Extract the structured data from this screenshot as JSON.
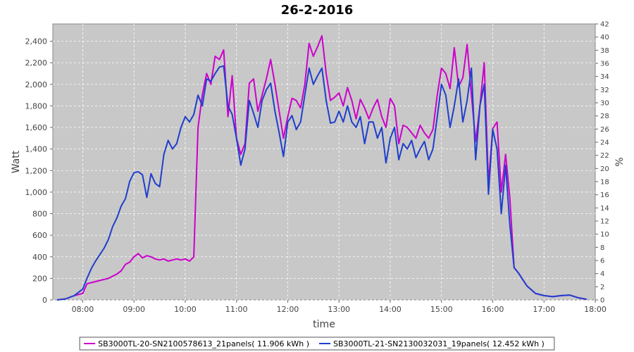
{
  "chart_data": {
    "type": "line",
    "title": "26-2-2016",
    "xlabel": "time",
    "ylabel": "Watt",
    "y2label": "%",
    "xlim": [
      "07:25",
      "18:00"
    ],
    "ylim": [
      0,
      2560
    ],
    "y2lim": [
      0,
      42
    ],
    "x_ticks": [
      "08:00",
      "09:00",
      "10:00",
      "11:00",
      "12:00",
      "13:00",
      "14:00",
      "15:00",
      "16:00",
      "17:00",
      "18:00"
    ],
    "y_ticks": [
      "0",
      "200",
      "400",
      "600",
      "800",
      "1,000",
      "1,200",
      "1,400",
      "1,600",
      "1,800",
      "2,000",
      "2,200",
      "2,400"
    ],
    "y2_ticks": [
      "0",
      "2",
      "4",
      "6",
      "8",
      "10",
      "12",
      "14",
      "16",
      "18",
      "20",
      "22",
      "24",
      "26",
      "28",
      "30",
      "32",
      "34",
      "36",
      "38",
      "40",
      "42"
    ],
    "grid": true,
    "background": "#c8c8c8",
    "legend_position": "bottom",
    "series": [
      {
        "name": "SB3000TL-20-SN2100578613_21panels( 11.906 kWh )",
        "color": "#cc00cc",
        "points": [
          [
            "07:30",
            0
          ],
          [
            "07:40",
            10
          ],
          [
            "07:50",
            40
          ],
          [
            "08:00",
            60
          ],
          [
            "08:05",
            150
          ],
          [
            "08:10",
            160
          ],
          [
            "08:20",
            180
          ],
          [
            "08:30",
            200
          ],
          [
            "08:40",
            240
          ],
          [
            "08:45",
            270
          ],
          [
            "08:50",
            330
          ],
          [
            "08:55",
            350
          ],
          [
            "09:00",
            400
          ],
          [
            "09:05",
            430
          ],
          [
            "09:10",
            390
          ],
          [
            "09:15",
            410
          ],
          [
            "09:20",
            400
          ],
          [
            "09:25",
            380
          ],
          [
            "09:30",
            370
          ],
          [
            "09:35",
            380
          ],
          [
            "09:40",
            360
          ],
          [
            "09:45",
            370
          ],
          [
            "09:50",
            380
          ],
          [
            "09:55",
            370
          ],
          [
            "10:00",
            380
          ],
          [
            "10:05",
            360
          ],
          [
            "10:10",
            400
          ],
          [
            "10:15",
            1600
          ],
          [
            "10:20",
            1900
          ],
          [
            "10:25",
            2100
          ],
          [
            "10:30",
            2000
          ],
          [
            "10:35",
            2260
          ],
          [
            "10:40",
            2230
          ],
          [
            "10:45",
            2320
          ],
          [
            "10:50",
            1700
          ],
          [
            "10:55",
            2080
          ],
          [
            "11:00",
            1500
          ],
          [
            "11:05",
            1350
          ],
          [
            "11:10",
            1450
          ],
          [
            "11:15",
            2010
          ],
          [
            "11:20",
            2050
          ],
          [
            "11:25",
            1750
          ],
          [
            "11:30",
            1900
          ],
          [
            "11:35",
            2050
          ],
          [
            "11:40",
            2230
          ],
          [
            "11:45",
            2000
          ],
          [
            "11:50",
            1750
          ],
          [
            "11:55",
            1500
          ],
          [
            "12:00",
            1700
          ],
          [
            "12:05",
            1870
          ],
          [
            "12:10",
            1850
          ],
          [
            "12:15",
            1780
          ],
          [
            "12:20",
            2000
          ],
          [
            "12:25",
            2380
          ],
          [
            "12:30",
            2260
          ],
          [
            "12:35",
            2350
          ],
          [
            "12:40",
            2450
          ],
          [
            "12:45",
            2100
          ],
          [
            "12:50",
            1850
          ],
          [
            "12:55",
            1880
          ],
          [
            "13:00",
            1920
          ],
          [
            "13:05",
            1800
          ],
          [
            "13:10",
            1970
          ],
          [
            "13:15",
            1850
          ],
          [
            "13:20",
            1680
          ],
          [
            "13:25",
            1860
          ],
          [
            "13:30",
            1780
          ],
          [
            "13:35",
            1680
          ],
          [
            "13:40",
            1780
          ],
          [
            "13:45",
            1860
          ],
          [
            "13:50",
            1700
          ],
          [
            "13:55",
            1600
          ],
          [
            "14:00",
            1870
          ],
          [
            "14:05",
            1800
          ],
          [
            "14:10",
            1450
          ],
          [
            "14:15",
            1620
          ],
          [
            "14:20",
            1600
          ],
          [
            "14:25",
            1550
          ],
          [
            "14:30",
            1500
          ],
          [
            "14:35",
            1620
          ],
          [
            "14:40",
            1550
          ],
          [
            "14:45",
            1500
          ],
          [
            "14:50",
            1580
          ],
          [
            "14:55",
            1900
          ],
          [
            "15:00",
            2150
          ],
          [
            "15:05",
            2100
          ],
          [
            "15:10",
            1960
          ],
          [
            "15:15",
            2340
          ],
          [
            "15:20",
            1980
          ],
          [
            "15:25",
            2060
          ],
          [
            "15:30",
            2370
          ],
          [
            "15:35",
            1900
          ],
          [
            "15:40",
            1470
          ],
          [
            "15:45",
            1800
          ],
          [
            "15:50",
            2200
          ],
          [
            "15:55",
            1080
          ],
          [
            "16:00",
            1590
          ],
          [
            "16:05",
            1650
          ],
          [
            "16:10",
            1000
          ],
          [
            "16:15",
            1350
          ],
          [
            "16:20",
            950
          ],
          [
            "16:25",
            300
          ],
          [
            "16:30",
            250
          ],
          [
            "16:40",
            130
          ],
          [
            "16:50",
            60
          ],
          [
            "17:00",
            40
          ],
          [
            "17:10",
            30
          ],
          [
            "17:20",
            40
          ],
          [
            "17:30",
            45
          ],
          [
            "17:40",
            20
          ],
          [
            "17:50",
            5
          ]
        ]
      },
      {
        "name": "SB3000TL-21-SN2130032031_19panels( 12.452 kWh )",
        "color": "#1f3fcc",
        "points": [
          [
            "07:30",
            0
          ],
          [
            "07:40",
            10
          ],
          [
            "07:50",
            40
          ],
          [
            "08:00",
            100
          ],
          [
            "08:05",
            200
          ],
          [
            "08:10",
            290
          ],
          [
            "08:15",
            360
          ],
          [
            "08:20",
            420
          ],
          [
            "08:25",
            480
          ],
          [
            "08:30",
            560
          ],
          [
            "08:35",
            680
          ],
          [
            "08:40",
            760
          ],
          [
            "08:45",
            870
          ],
          [
            "08:50",
            940
          ],
          [
            "08:55",
            1100
          ],
          [
            "09:00",
            1180
          ],
          [
            "09:05",
            1190
          ],
          [
            "09:10",
            1160
          ],
          [
            "09:15",
            950
          ],
          [
            "09:20",
            1170
          ],
          [
            "09:25",
            1080
          ],
          [
            "09:30",
            1050
          ],
          [
            "09:35",
            1350
          ],
          [
            "09:40",
            1480
          ],
          [
            "09:45",
            1400
          ],
          [
            "09:50",
            1450
          ],
          [
            "09:55",
            1600
          ],
          [
            "10:00",
            1700
          ],
          [
            "10:05",
            1650
          ],
          [
            "10:10",
            1720
          ],
          [
            "10:15",
            1900
          ],
          [
            "10:20",
            1800
          ],
          [
            "10:25",
            2050
          ],
          [
            "10:30",
            2030
          ],
          [
            "10:35",
            2100
          ],
          [
            "10:40",
            2160
          ],
          [
            "10:45",
            2170
          ],
          [
            "10:50",
            1800
          ],
          [
            "10:55",
            1720
          ],
          [
            "11:00",
            1500
          ],
          [
            "11:05",
            1250
          ],
          [
            "11:10",
            1400
          ],
          [
            "11:15",
            1850
          ],
          [
            "11:20",
            1730
          ],
          [
            "11:25",
            1600
          ],
          [
            "11:30",
            1850
          ],
          [
            "11:35",
            1950
          ],
          [
            "11:40",
            2010
          ],
          [
            "11:45",
            1750
          ],
          [
            "11:50",
            1550
          ],
          [
            "11:55",
            1330
          ],
          [
            "12:00",
            1650
          ],
          [
            "12:05",
            1710
          ],
          [
            "12:10",
            1580
          ],
          [
            "12:15",
            1650
          ],
          [
            "12:20",
            1900
          ],
          [
            "12:25",
            2150
          ],
          [
            "12:30",
            2000
          ],
          [
            "12:35",
            2080
          ],
          [
            "12:40",
            2150
          ],
          [
            "12:45",
            1850
          ],
          [
            "12:50",
            1640
          ],
          [
            "12:55",
            1650
          ],
          [
            "13:00",
            1750
          ],
          [
            "13:05",
            1650
          ],
          [
            "13:10",
            1800
          ],
          [
            "13:15",
            1650
          ],
          [
            "13:20",
            1600
          ],
          [
            "13:25",
            1700
          ],
          [
            "13:30",
            1450
          ],
          [
            "13:35",
            1650
          ],
          [
            "13:40",
            1650
          ],
          [
            "13:45",
            1500
          ],
          [
            "13:50",
            1600
          ],
          [
            "13:55",
            1270
          ],
          [
            "14:00",
            1500
          ],
          [
            "14:05",
            1600
          ],
          [
            "14:10",
            1300
          ],
          [
            "14:15",
            1450
          ],
          [
            "14:20",
            1400
          ],
          [
            "14:25",
            1480
          ],
          [
            "14:30",
            1320
          ],
          [
            "14:35",
            1400
          ],
          [
            "14:40",
            1470
          ],
          [
            "14:45",
            1300
          ],
          [
            "14:50",
            1400
          ],
          [
            "14:55",
            1700
          ],
          [
            "15:00",
            2000
          ],
          [
            "15:05",
            1900
          ],
          [
            "15:10",
            1600
          ],
          [
            "15:15",
            1800
          ],
          [
            "15:20",
            2050
          ],
          [
            "15:25",
            1650
          ],
          [
            "15:30",
            1850
          ],
          [
            "15:35",
            2150
          ],
          [
            "15:40",
            1300
          ],
          [
            "15:45",
            1800
          ],
          [
            "15:50",
            2000
          ],
          [
            "15:55",
            980
          ],
          [
            "16:00",
            1580
          ],
          [
            "16:05",
            1400
          ],
          [
            "16:10",
            800
          ],
          [
            "16:15",
            1250
          ],
          [
            "16:20",
            700
          ],
          [
            "16:25",
            300
          ],
          [
            "16:30",
            250
          ],
          [
            "16:40",
            130
          ],
          [
            "16:50",
            60
          ],
          [
            "17:00",
            40
          ],
          [
            "17:10",
            30
          ],
          [
            "17:20",
            40
          ],
          [
            "17:30",
            45
          ],
          [
            "17:40",
            20
          ],
          [
            "17:50",
            5
          ]
        ]
      }
    ]
  }
}
